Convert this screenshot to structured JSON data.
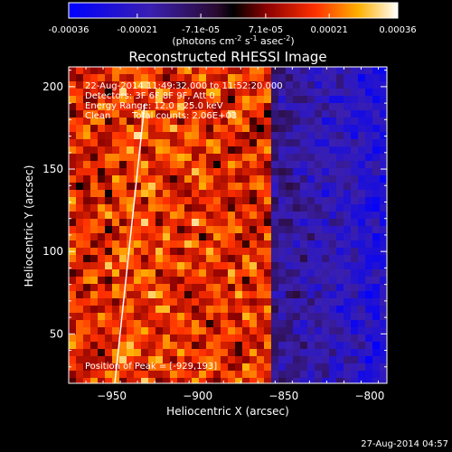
{
  "colorbar": {
    "tick_labels": [
      "-0.00036",
      "-0.00021",
      "-7.1e-05",
      "7.1e-05",
      "0.00021",
      "0.00036"
    ],
    "tick_values": [
      -0.00036,
      -0.00021,
      -7.1e-05,
      7.1e-05,
      0.00021,
      0.00036
    ],
    "min": -0.00036,
    "max": 0.00036,
    "units_label": "(photons cm",
    "units_exp1": "-2",
    "units_mid": " s",
    "units_exp2": "-1",
    "units_mid2": " asec",
    "units_exp3": "-2",
    "units_end": ")"
  },
  "title": "Reconstructed RHESSI Image",
  "info": {
    "time_range": "22-Aug-2014 11:49:32.000 to 11:52:20.000",
    "detectors": "Detectors: 3F 6F 8F 9F, Att 0",
    "energy_range": "Energy Range: 12.0 - 25.0 keV",
    "clean_label": "Clean",
    "total_counts": "Total counts: 2.06E+03",
    "peak": "Position of Peak = [-929,193]"
  },
  "axes": {
    "xlabel": "Heliocentric X (arcsec)",
    "ylabel": "Heliocentric Y (arcsec)",
    "xlim": [
      -975,
      -790
    ],
    "ylim": [
      20,
      212
    ],
    "xticks": [
      -950,
      -900,
      -850,
      -800
    ],
    "yticks": [
      50,
      100,
      150,
      200
    ],
    "xtick_labels": [
      "−950",
      "−900",
      "−850",
      "−800"
    ],
    "ytick_labels": [
      "50",
      "100",
      "150",
      "200"
    ]
  },
  "timestamp": "27-Aug-2014 04:57"
}
